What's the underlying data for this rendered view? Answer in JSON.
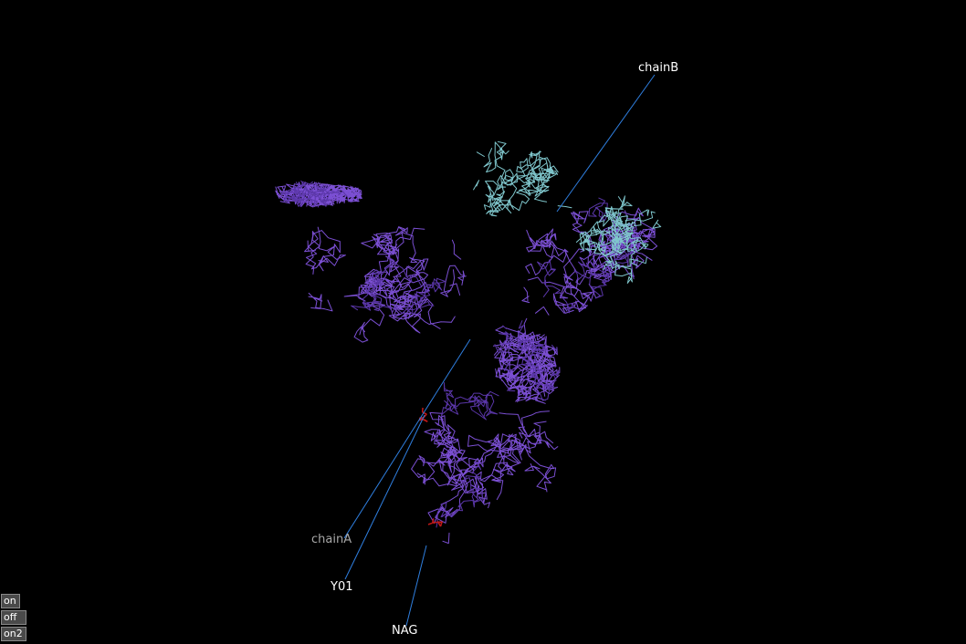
{
  "viewer": {
    "background": "#000000"
  },
  "labels": {
    "chainB": "chainB",
    "chainA": "chainA",
    "y01": "Y01",
    "nag": "NAG"
  },
  "colors": {
    "chainA": "#7b4fd3",
    "chainA_dark": "#5a36a8",
    "chainB": "#7fc6cc",
    "ligand": "#c01818",
    "callout_line": "#2f7fe0",
    "label_bright": "#ffffff",
    "label_dim": "#a8a8a8"
  },
  "controls": {
    "on": "on",
    "off": "off",
    "on2": "on2",
    "bg": "#4a4a4a",
    "fg": "#ffffff"
  }
}
